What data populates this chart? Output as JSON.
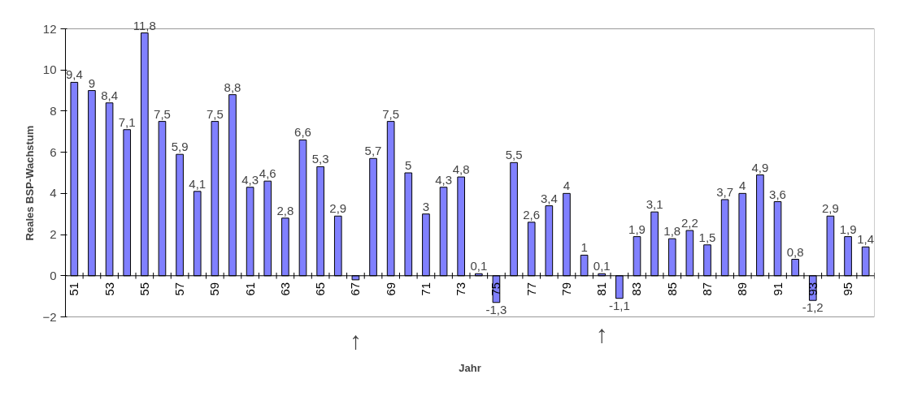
{
  "chart_data": {
    "type": "bar",
    "xlabel": "Jahr",
    "ylabel": "Reales BSP-Wachstum",
    "categories": [
      "51",
      null,
      "53",
      null,
      "55",
      null,
      "57",
      null,
      "59",
      null,
      "61",
      null,
      "63",
      null,
      "65",
      null,
      "67",
      null,
      "69",
      null,
      "71",
      null,
      "73",
      null,
      "75",
      null,
      "77",
      null,
      "79",
      null,
      "81",
      null,
      "83",
      null,
      "85",
      null,
      "87",
      null,
      "89",
      null,
      "91",
      null,
      "93",
      null,
      "95",
      null
    ],
    "values": [
      9.4,
      9,
      8.4,
      7.1,
      11.8,
      7.5,
      5.9,
      4.1,
      7.5,
      8.8,
      4.3,
      4.6,
      2.8,
      6.6,
      5.3,
      2.9,
      -0.2,
      5.7,
      7.5,
      5,
      3,
      4.3,
      4.8,
      0.1,
      -1.3,
      5.5,
      2.6,
      3.4,
      4,
      1,
      0.1,
      -1.1,
      1.9,
      3.1,
      1.8,
      2.2,
      1.5,
      3.7,
      4,
      4.9,
      3.6,
      0.8,
      -1.2,
      2.9,
      1.9,
      1.4
    ],
    "value_labels": [
      "9,4",
      "9",
      "8,4",
      "7,1",
      "11,8",
      "7,5",
      "5,9",
      "4,1",
      "7,5",
      "8,8",
      "4,3",
      "4,6",
      "2,8",
      "6,6",
      "5,3",
      "2,9",
      null,
      "5,7",
      "7,5",
      "5",
      "3",
      "4,3",
      "4,8",
      "0,1",
      "-1,3",
      "5,5",
      "2,6",
      "3,4",
      "4",
      "1",
      "0,1",
      "-1,1",
      "1,9",
      "3,1",
      "1,8",
      "2,2",
      "1,5",
      "3,7",
      "4",
      "4,9",
      "3,6",
      "0,8",
      "-1,2",
      "2,9",
      "1,9",
      "1,4"
    ],
    "color": "#8080ff",
    "ylim": [
      -2,
      12
    ],
    "yticks": [
      -2,
      0,
      2,
      4,
      6,
      8,
      10,
      12
    ],
    "annotations": [
      {
        "text": "↑",
        "x": "67",
        "y": -0.2
      },
      {
        "text": "↑",
        "x": "81",
        "y": 0.1
      }
    ]
  }
}
